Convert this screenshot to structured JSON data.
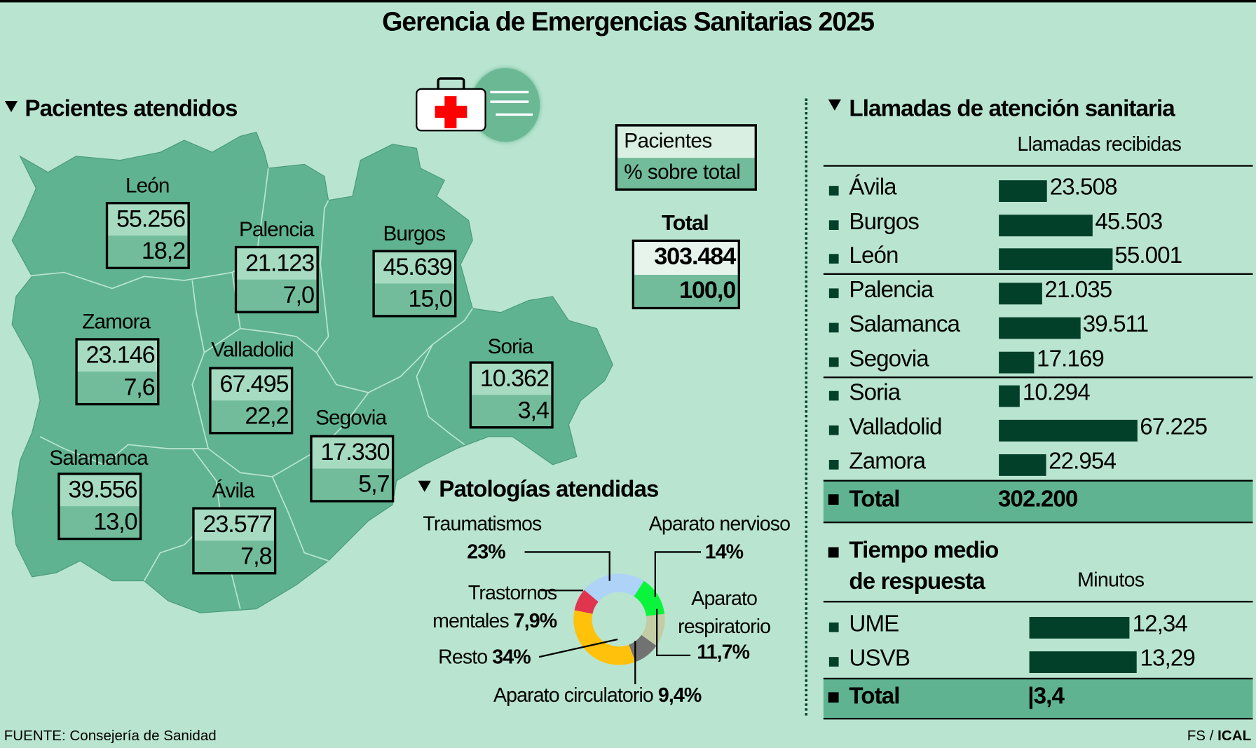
{
  "title": "Gerencia de Emergencias Sanitarias 2025",
  "colors": {
    "background": "#b9e5d0",
    "map": "#5fb391",
    "bar": "#03402a",
    "total_row": "#5fb391",
    "box_top": "#a6dbc1",
    "box_bottom": "#72bc9c"
  },
  "icon": "first-aid-kit-icon",
  "patients": {
    "heading": "Pacientes atendidos",
    "legend": {
      "top": "Pacientes",
      "bottom": "% sobre total"
    },
    "total": {
      "label": "Total",
      "value": "303.484",
      "percent": "100,0"
    },
    "provinces": [
      {
        "name": "León",
        "value": "55.256",
        "percent": "18,2"
      },
      {
        "name": "Palencia",
        "value": "21.123",
        "percent": "7,0"
      },
      {
        "name": "Burgos",
        "value": "45.639",
        "percent": "15,0"
      },
      {
        "name": "Zamora",
        "value": "23.146",
        "percent": "7,6"
      },
      {
        "name": "Valladolid",
        "value": "67.495",
        "percent": "22,2"
      },
      {
        "name": "Soria",
        "value": "10.362",
        "percent": "3,4"
      },
      {
        "name": "Segovia",
        "value": "17.330",
        "percent": "5,7"
      },
      {
        "name": "Salamanca",
        "value": "39.556",
        "percent": "13,0"
      },
      {
        "name": "Ávila",
        "value": "23.577",
        "percent": "7,8"
      }
    ]
  },
  "chart_data": [
    {
      "type": "pie",
      "title": "Patologías atendidas",
      "donut": true,
      "slices": [
        {
          "name": "Traumatismos",
          "value": 23,
          "label": "23%",
          "color": "#aed3f7"
        },
        {
          "name": "Aparato nervioso",
          "value": 14,
          "label": "14%",
          "color": "#0af43c"
        },
        {
          "name": "Aparato respiratorio",
          "value": 11.7,
          "label": "11,7%",
          "color": "#c3cca5"
        },
        {
          "name": "Aparato circulatorio",
          "value": 9.4,
          "label": "9,4%",
          "color": "#727272"
        },
        {
          "name": "Resto",
          "value": 34,
          "label": "34%",
          "color": "#ffc10a"
        },
        {
          "name": "Trastornos mentales",
          "value": 7.9,
          "label": "7,9%",
          "color": "#e0344f"
        }
      ]
    },
    {
      "type": "bar",
      "title": "Llamadas de atención sanitaria",
      "subtitle": "Llamadas recibidas",
      "categories": [
        "Ávila",
        "Burgos",
        "León",
        "Palencia",
        "Salamanca",
        "Segovia",
        "Soria",
        "Valladolid",
        "Zamora"
      ],
      "values": [
        23508,
        45503,
        55001,
        21035,
        39511,
        17169,
        10294,
        67225,
        22954
      ],
      "value_labels": [
        "23.508",
        "45.503",
        "55.001",
        "21.035",
        "39.511",
        "17.169",
        "10.294",
        "67.225",
        "22.954"
      ],
      "total": {
        "label": "Total",
        "value": "302.200"
      }
    },
    {
      "type": "bar",
      "title_line1": "Tiempo medio",
      "title_line2": "de respuesta",
      "subtitle": "Minutos",
      "categories": [
        "UME",
        "USVB"
      ],
      "values": [
        12.34,
        13.29
      ],
      "value_labels": [
        "12,34",
        "13,29"
      ],
      "total": {
        "label": "Total",
        "value": "|3,4"
      }
    }
  ],
  "footer": {
    "source": "FUENTE: Consejería de Sanidad",
    "credit_plain": "FS / ",
    "credit_bold": "ICAL"
  }
}
